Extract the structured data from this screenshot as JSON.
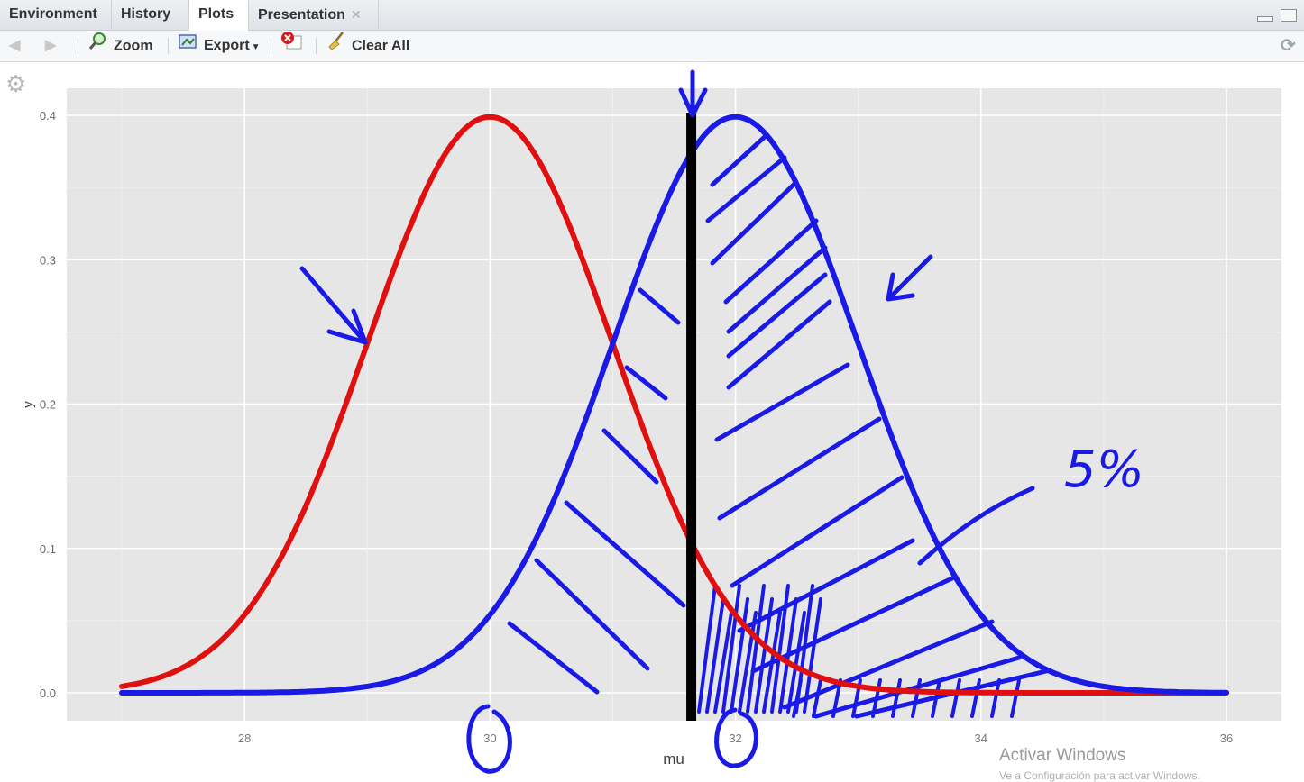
{
  "tabs": [
    {
      "label": "Environment",
      "active": false
    },
    {
      "label": "History",
      "active": false
    },
    {
      "label": "Plots",
      "active": true
    },
    {
      "label": "Presentation",
      "active": false
    }
  ],
  "toolbar": {
    "zoom_label": "Zoom",
    "export_label": "Export",
    "clear_label": "Clear All"
  },
  "chart_data": {
    "type": "line",
    "xlabel": "mu",
    "ylabel": "y",
    "xlim": [
      27,
      36
    ],
    "ylim": [
      0,
      0.4
    ],
    "x_ticks": [
      "28",
      "30",
      "32",
      "34",
      "36"
    ],
    "y_ticks": [
      "0.0",
      "0.1",
      "0.2",
      "0.3",
      "0.4"
    ],
    "grid": true,
    "series": [
      {
        "mean": 30,
        "sd": 1,
        "color": "#e01010"
      },
      {
        "mean": 32,
        "sd": 1,
        "color": "#1a1ae6"
      }
    ],
    "cutoff": 31.64,
    "annotations": [
      {
        "text": "5%",
        "color": "#1a1ae6"
      }
    ]
  },
  "watermark": {
    "line1": "Activar Windows",
    "line2": "Ve a Configuración para activar Windows."
  }
}
